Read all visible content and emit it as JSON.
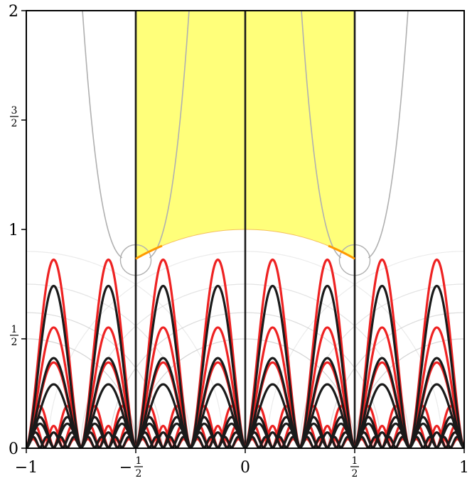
{
  "chart_data": {
    "type": "line",
    "xlim": [
      -1,
      1
    ],
    "ylim": [
      0,
      2
    ],
    "grid": false,
    "xticks": [
      {
        "value": -1,
        "label": "−1"
      },
      {
        "value": -0.5,
        "sign": "−",
        "num": "1",
        "den": "2"
      },
      {
        "value": 0,
        "label": "0"
      },
      {
        "value": 0.5,
        "num": "1",
        "den": "2"
      },
      {
        "value": 1,
        "label": "1"
      }
    ],
    "yticks": [
      {
        "value": 0,
        "label": "0"
      },
      {
        "value": 0.5,
        "num": "1",
        "den": "2"
      },
      {
        "value": 1,
        "label": "1"
      },
      {
        "value": 1.5,
        "num": "3",
        "den": "2"
      },
      {
        "value": 2,
        "label": "2"
      }
    ],
    "fundamental_domain": {
      "x_range": [
        -0.5,
        0.5
      ],
      "y_top": 2,
      "lower_boundary": "unit circle arc",
      "color": "#ffff7a"
    },
    "vertical_lines_x": [
      -0.5,
      0,
      0.5
    ],
    "series": [
      {
        "color": "#1a1a1a",
        "levels": [
          {
            "height": 0.74,
            "order": 2
          },
          {
            "height": 0.41,
            "order": 2
          },
          {
            "height": 0.29,
            "order": 2
          },
          {
            "height": 0.14,
            "order": 4
          },
          {
            "height": 0.11,
            "order": 4
          },
          {
            "height": 0.07,
            "order": 6
          },
          {
            "height": 0.05,
            "order": 8
          }
        ]
      },
      {
        "color": "#ee2222",
        "levels": [
          {
            "height": 0.86,
            "order": 2
          },
          {
            "height": 0.55,
            "order": 2
          },
          {
            "height": 0.39,
            "order": 2
          },
          {
            "height": 0.19,
            "order": 4
          },
          {
            "height": 0.14,
            "order": 4
          },
          {
            "height": 0.1,
            "order": 6
          },
          {
            "height": 0.07,
            "order": 6
          },
          {
            "height": 0.05,
            "order": 8
          },
          {
            "height": 0.04,
            "order": 8
          }
        ]
      }
    ],
    "grey_curves": {
      "color": "#b0b0b0",
      "horocycle_centers_x": [
        -0.5,
        0.5
      ],
      "asymptote_offset": 0.25,
      "small_circle_radius": 0.07,
      "faint_arc_radii": [
        0.5,
        0.62,
        0.75,
        0.9
      ]
    },
    "orange_arcs": {
      "color": "#ff9900",
      "x_ranges": [
        [
          -0.5,
          -0.38
        ],
        [
          0.38,
          0.5
        ]
      ]
    }
  }
}
